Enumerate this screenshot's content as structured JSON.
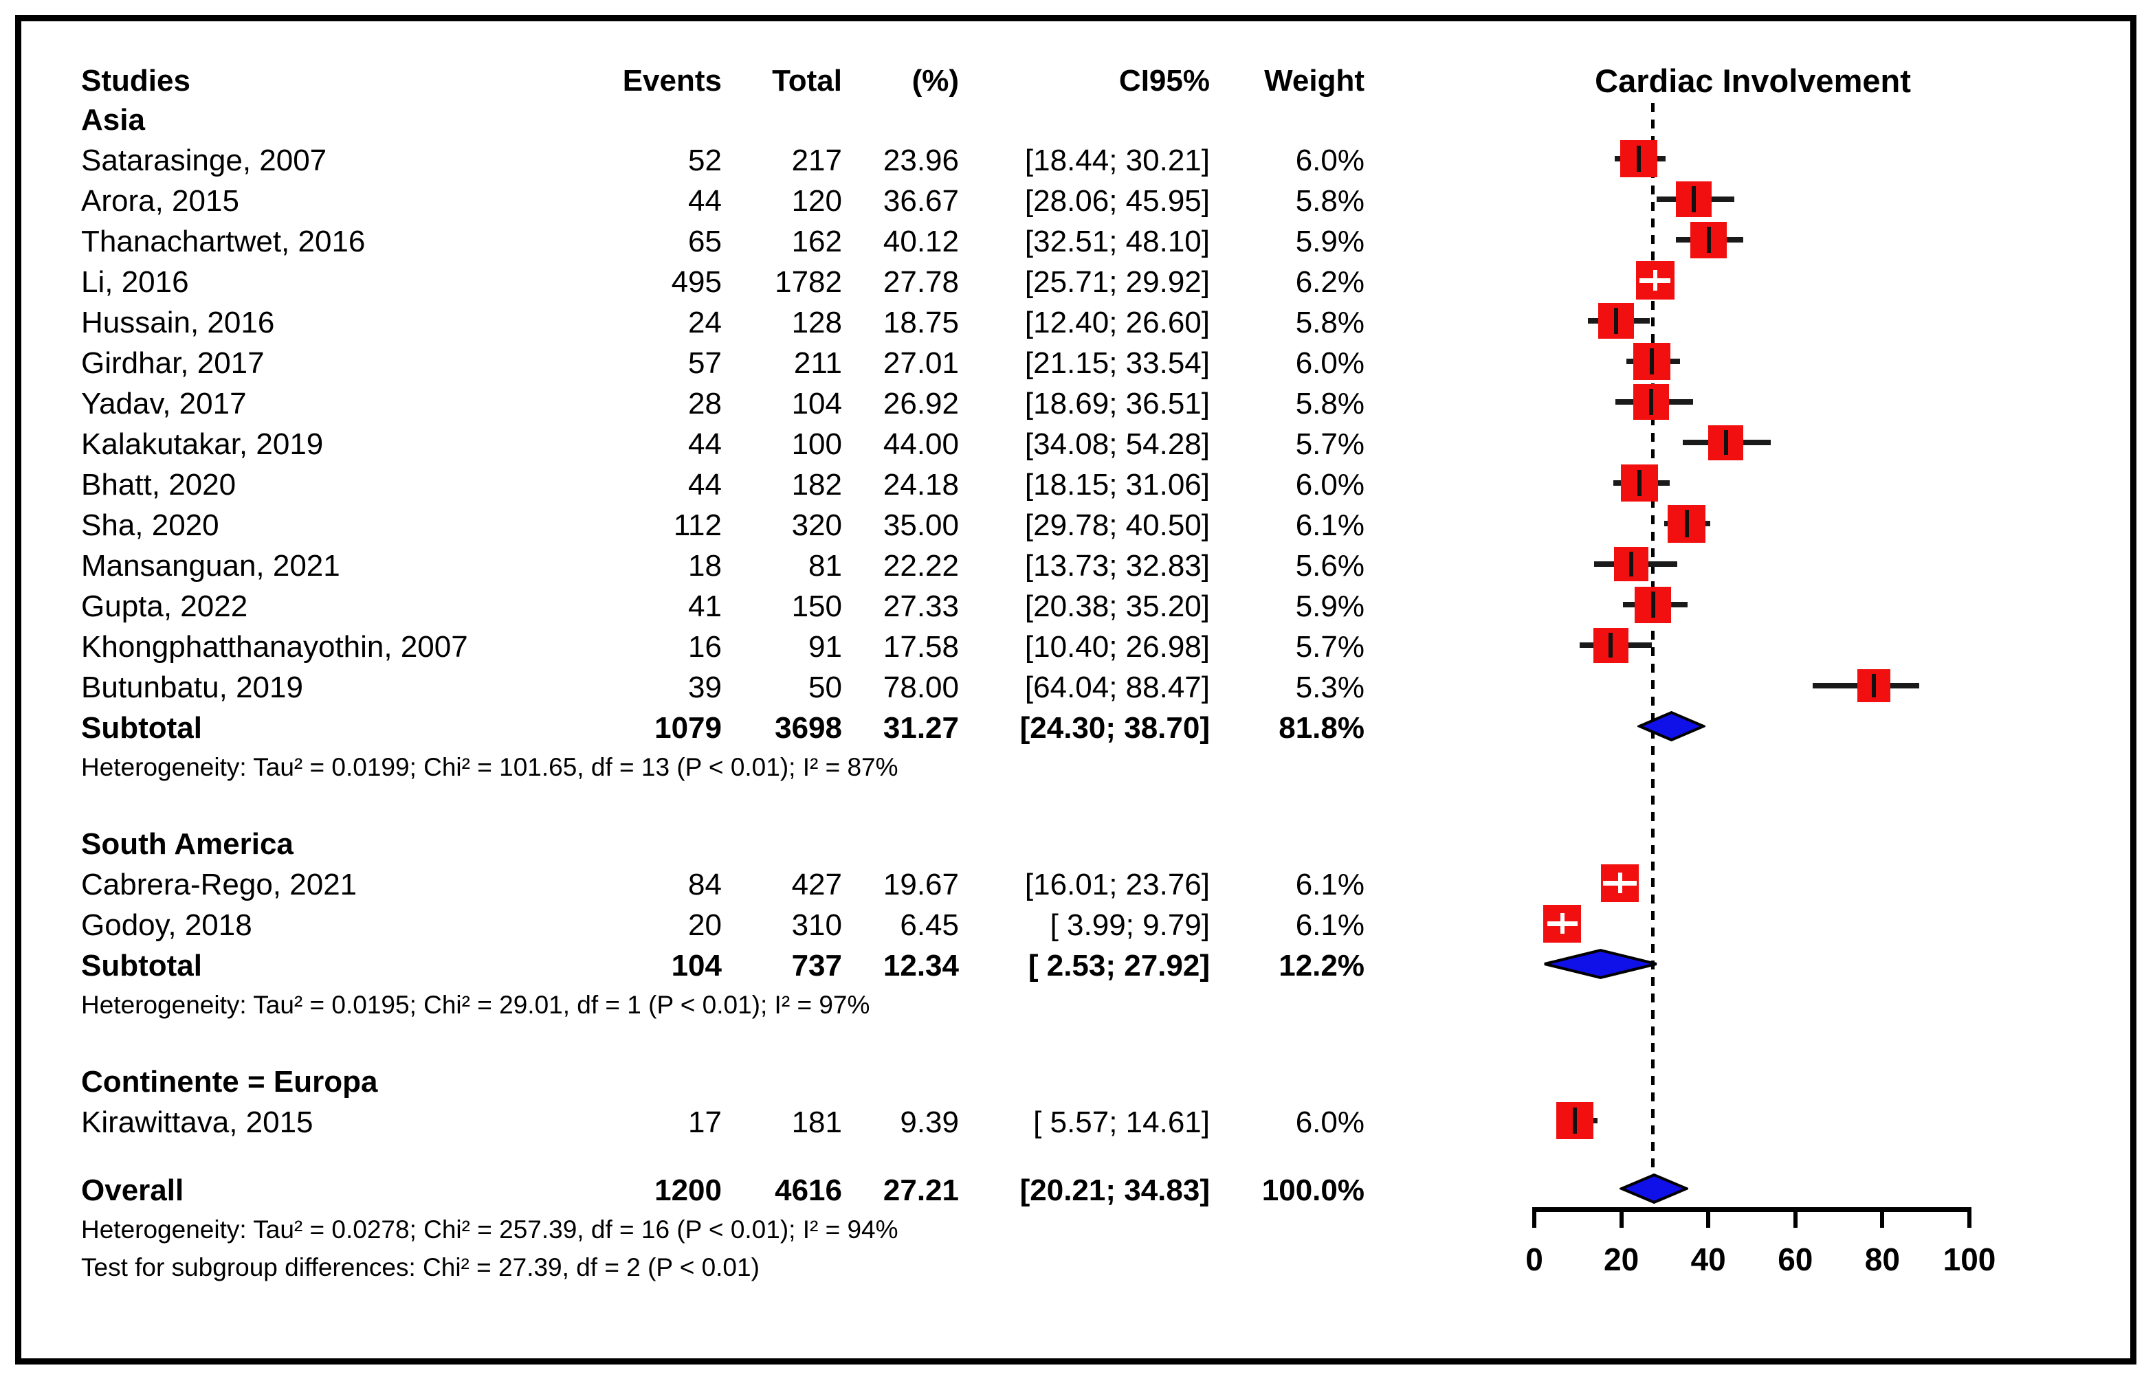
{
  "table_header": {
    "studies": "Studies",
    "events": "Events",
    "total": "Total",
    "pct": "(%)",
    "ci": "CI95%",
    "weight": "Weight"
  },
  "chart_data": {
    "type": "forest",
    "title": "Cardiac Involvement",
    "xlabel": "",
    "axis": {
      "range": [
        0,
        100
      ],
      "ticks": [
        0,
        20,
        40,
        60,
        80,
        100
      ]
    },
    "reference_line": 27.21,
    "colors": {
      "marker_square": "#f10f0f",
      "summary_diamond": "#1010e8",
      "ci_line": "#1a1a1a",
      "text": "#000000",
      "frame": "#000000"
    },
    "sections": [
      {
        "label": "Asia",
        "studies": [
          {
            "name": "Satarasinge, 2007",
            "events": "52",
            "total": "217",
            "pct": "23.96",
            "estimate": 23.96,
            "ci": [
              18.44,
              30.21
            ],
            "ci_text": "[18.44; 30.21]",
            "weight_text": "6.0%",
            "weight": 6.0
          },
          {
            "name": "Arora, 2015",
            "events": "44",
            "total": "120",
            "pct": "36.67",
            "estimate": 36.67,
            "ci": [
              28.06,
              45.95
            ],
            "ci_text": "[28.06; 45.95]",
            "weight_text": "5.8%",
            "weight": 5.8
          },
          {
            "name": "Thanachartwet, 2016",
            "events": "65",
            "total": "162",
            "pct": "40.12",
            "estimate": 40.12,
            "ci": [
              32.51,
              48.1
            ],
            "ci_text": "[32.51; 48.10]",
            "weight_text": "5.9%",
            "weight": 5.9
          },
          {
            "name": "Li, 2016",
            "events": "495",
            "total": "1782",
            "pct": "27.78",
            "estimate": 27.78,
            "ci": [
              25.71,
              29.92
            ],
            "ci_text": "[25.71; 29.92]",
            "weight_text": "6.2%",
            "weight": 6.2
          },
          {
            "name": "Hussain, 2016",
            "events": "24",
            "total": "128",
            "pct": "18.75",
            "estimate": 18.75,
            "ci": [
              12.4,
              26.6
            ],
            "ci_text": "[12.40; 26.60]",
            "weight_text": "5.8%",
            "weight": 5.8
          },
          {
            "name": "Girdhar, 2017",
            "events": "57",
            "total": "211",
            "pct": "27.01",
            "estimate": 27.01,
            "ci": [
              21.15,
              33.54
            ],
            "ci_text": "[21.15; 33.54]",
            "weight_text": "6.0%",
            "weight": 6.0
          },
          {
            "name": "Yadav, 2017",
            "events": "28",
            "total": "104",
            "pct": "26.92",
            "estimate": 26.92,
            "ci": [
              18.69,
              36.51
            ],
            "ci_text": "[18.69; 36.51]",
            "weight_text": "5.8%",
            "weight": 5.8
          },
          {
            "name": "Kalakutakar, 2019",
            "events": "44",
            "total": "100",
            "pct": "44.00",
            "estimate": 44.0,
            "ci": [
              34.08,
              54.28
            ],
            "ci_text": "[34.08; 54.28]",
            "weight_text": "5.7%",
            "weight": 5.7
          },
          {
            "name": "Bhatt, 2020",
            "events": "44",
            "total": "182",
            "pct": "24.18",
            "estimate": 24.18,
            "ci": [
              18.15,
              31.06
            ],
            "ci_text": "[18.15; 31.06]",
            "weight_text": "6.0%",
            "weight": 6.0
          },
          {
            "name": "Sha, 2020",
            "events": "112",
            "total": "320",
            "pct": "35.00",
            "estimate": 35.0,
            "ci": [
              29.78,
              40.5
            ],
            "ci_text": "[29.78; 40.50]",
            "weight_text": "6.1%",
            "weight": 6.1
          },
          {
            "name": "Mansanguan, 2021",
            "events": "18",
            "total": "81",
            "pct": "22.22",
            "estimate": 22.22,
            "ci": [
              13.73,
              32.83
            ],
            "ci_text": "[13.73; 32.83]",
            "weight_text": "5.6%",
            "weight": 5.6
          },
          {
            "name": "Gupta, 2022",
            "events": "41",
            "total": "150",
            "pct": "27.33",
            "estimate": 27.33,
            "ci": [
              20.38,
              35.2
            ],
            "ci_text": "[20.38; 35.20]",
            "weight_text": "5.9%",
            "weight": 5.9
          },
          {
            "name": "Khongphatthanayothin, 2007",
            "events": "16",
            "total": "91",
            "pct": "17.58",
            "estimate": 17.58,
            "ci": [
              10.4,
              26.98
            ],
            "ci_text": "[10.40; 26.98]",
            "weight_text": "5.7%",
            "weight": 5.7
          },
          {
            "name": "Butunbatu, 2019",
            "events": "39",
            "total": "50",
            "pct": "78.00",
            "estimate": 78.0,
            "ci": [
              64.04,
              88.47
            ],
            "ci_text": "[64.04; 88.47]",
            "weight_text": "5.3%",
            "weight": 5.3
          }
        ],
        "subtotal": {
          "label": "Subtotal",
          "events": "1079",
          "total": "3698",
          "pct": "31.27",
          "estimate": 31.27,
          "ci": [
            24.3,
            38.7
          ],
          "ci_text": "[24.30; 38.70]",
          "weight_text": "81.8%"
        },
        "heterogeneity": "Heterogeneity: Tau² = 0.0199; Chi² = 101.65, df = 13 (P < 0.01); I² = 87%"
      },
      {
        "label": "South America",
        "studies": [
          {
            "name": "Cabrera-Rego, 2021",
            "events": "84",
            "total": "427",
            "pct": "19.67",
            "estimate": 19.67,
            "ci": [
              16.01,
              23.76
            ],
            "ci_text": "[16.01; 23.76]",
            "weight_text": "6.1%",
            "weight": 6.1
          },
          {
            "name": "Godoy, 2018",
            "events": "20",
            "total": "310",
            "pct": "6.45",
            "estimate": 6.45,
            "ci": [
              3.99,
              9.79
            ],
            "ci_text": "[ 3.99; 9.79]",
            "weight_text": "6.1%",
            "weight": 6.1
          }
        ],
        "subtotal": {
          "label": "Subtotal",
          "events": "104",
          "total": "737",
          "pct": "12.34",
          "estimate": 12.34,
          "ci": [
            2.53,
            27.92
          ],
          "ci_text": "[ 2.53; 27.92]",
          "weight_text": "12.2%"
        },
        "heterogeneity": "Heterogeneity: Tau² = 0.0195; Chi² = 29.01, df = 1 (P < 0.01); I² = 97%"
      },
      {
        "label": "Continente = Europa",
        "studies": [
          {
            "name": "Kirawittava, 2015",
            "events": "17",
            "total": "181",
            "pct": "9.39",
            "estimate": 9.39,
            "ci": [
              5.57,
              14.61
            ],
            "ci_text": "[ 5.57; 14.61]",
            "weight_text": "6.0%",
            "weight": 6.0
          }
        ],
        "subtotal": null,
        "heterogeneity": null
      }
    ],
    "overall": {
      "label": "Overall",
      "events": "1200",
      "total": "4616",
      "pct": "27.21",
      "estimate": 27.21,
      "ci": [
        20.21,
        34.83
      ],
      "ci_text": "[20.21; 34.83]",
      "weight_text": "100.0%"
    },
    "overall_heterogeneity": "Heterogeneity: Tau² = 0.0278; Chi² = 257.39, df = 16 (P < 0.01); I² = 94%",
    "subgroup_test": "Test for subgroup differences: Chi² = 27.39, df = 2 (P < 0.01)"
  }
}
